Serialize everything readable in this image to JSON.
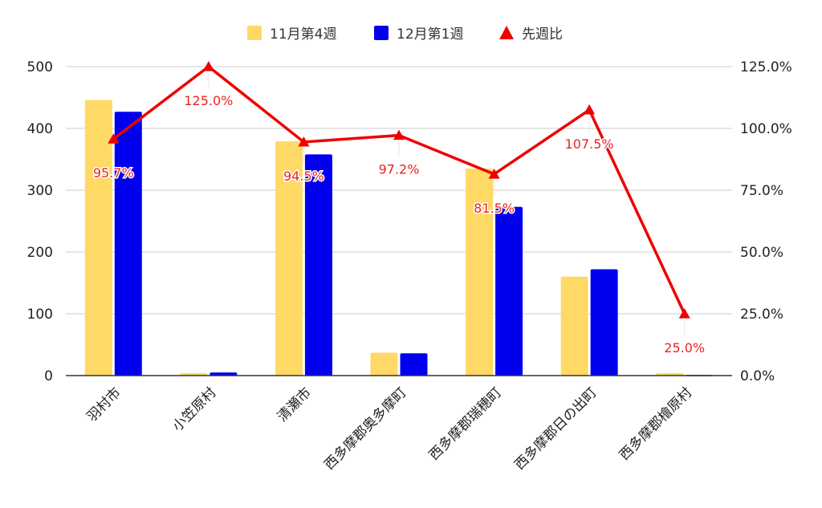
{
  "chart_data": {
    "type": "bar",
    "categories": [
      "羽村市",
      "小笠原村",
      "清瀬市",
      "西多摩郡奥多摩町",
      "西多摩郡瑞穂町",
      "西多摩郡日の出町",
      "西多摩郡檜原村"
    ],
    "series": [
      {
        "name": "11月第4週",
        "type": "bar",
        "axis": "left",
        "color": "#FFD966",
        "values": [
          446,
          4,
          379,
          37,
          335,
          160,
          4
        ]
      },
      {
        "name": "12月第1週",
        "type": "bar",
        "axis": "left",
        "color": "#0000EE",
        "values": [
          427,
          5,
          358,
          36,
          273,
          172,
          1
        ]
      },
      {
        "name": "先週比",
        "type": "line",
        "axis": "right",
        "color": "#EE0000",
        "values": [
          95.7,
          125.0,
          94.5,
          97.2,
          81.5,
          107.5,
          25.0
        ],
        "labels": [
          "95.7%",
          "125.0%",
          "94.5%",
          "97.2%",
          "81.5%",
          "107.5%",
          "25.0%"
        ]
      }
    ],
    "y_left": {
      "ylim": [
        0,
        500
      ],
      "ticks": [
        0,
        100,
        200,
        300,
        400,
        500
      ]
    },
    "y_right": {
      "ylim": [
        0,
        125
      ],
      "ticks": [
        "0.0%",
        "25.0%",
        "50.0%",
        "75.0%",
        "100.0%",
        "125.0%"
      ]
    },
    "legend_position": "top",
    "grid": true
  }
}
